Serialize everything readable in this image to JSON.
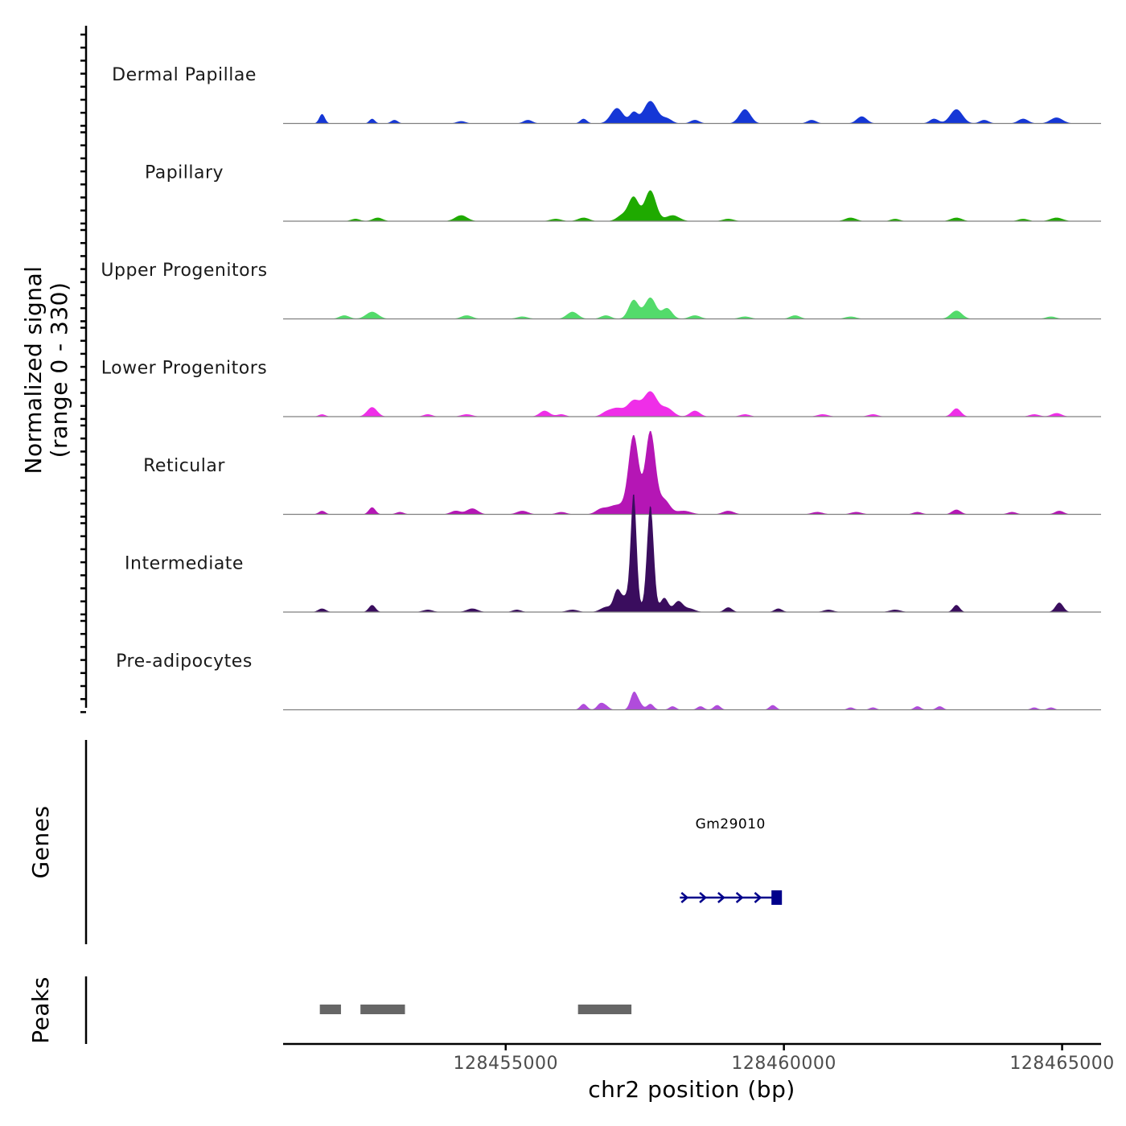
{
  "chart_data": {
    "type": "area",
    "chromosome": "chr2",
    "xlabel": "chr2 position (bp)",
    "ylabel_line1": "Normalized signal",
    "ylabel_line2": "(range 0 - 330)",
    "signal_range": [
      0,
      330
    ],
    "xlim": [
      128451000,
      128465700
    ],
    "x_ticks": [
      128455000,
      128460000,
      128465000
    ],
    "x_tick_labels": [
      "128455000",
      "128460000",
      "128465000"
    ],
    "tracks": [
      {
        "name": "Dermal Papillae",
        "color": "#1537d6",
        "peaks": [
          [
            128451700,
            8,
            50
          ],
          [
            128452600,
            4,
            50
          ],
          [
            128453000,
            3,
            60
          ],
          [
            128454200,
            2,
            80
          ],
          [
            128455400,
            3,
            80
          ],
          [
            128456400,
            4,
            60
          ],
          [
            128457000,
            13,
            110
          ],
          [
            128457300,
            9,
            70
          ],
          [
            128457600,
            19,
            120
          ],
          [
            128457900,
            4,
            90
          ],
          [
            128458400,
            3,
            80
          ],
          [
            128459300,
            12,
            100
          ],
          [
            128460500,
            3,
            80
          ],
          [
            128461400,
            6,
            90
          ],
          [
            128462700,
            4,
            80
          ],
          [
            128463100,
            12,
            110
          ],
          [
            128463600,
            3,
            80
          ],
          [
            128464300,
            4,
            90
          ],
          [
            128464900,
            5,
            110
          ]
        ]
      },
      {
        "name": "Papillary",
        "color": "#1faa00",
        "peaks": [
          [
            128452300,
            2,
            80
          ],
          [
            128452700,
            3,
            90
          ],
          [
            128454200,
            5,
            110
          ],
          [
            128455900,
            2,
            100
          ],
          [
            128456400,
            3,
            100
          ],
          [
            128457100,
            5,
            100
          ],
          [
            128457300,
            20,
            90
          ],
          [
            128457600,
            26,
            100
          ],
          [
            128458000,
            5,
            120
          ],
          [
            128459000,
            2,
            100
          ],
          [
            128461200,
            3,
            100
          ],
          [
            128462000,
            2,
            80
          ],
          [
            128463100,
            3,
            100
          ],
          [
            128464300,
            2,
            90
          ],
          [
            128464900,
            3,
            110
          ]
        ]
      },
      {
        "name": "Upper Progenitors",
        "color": "#53db6b",
        "peaks": [
          [
            128452100,
            3,
            90
          ],
          [
            128452600,
            6,
            110
          ],
          [
            128454300,
            3,
            100
          ],
          [
            128455300,
            2,
            100
          ],
          [
            128456200,
            6,
            100
          ],
          [
            128456800,
            3,
            90
          ],
          [
            128457300,
            16,
            90
          ],
          [
            128457600,
            18,
            100
          ],
          [
            128457900,
            9,
            90
          ],
          [
            128458400,
            3,
            100
          ],
          [
            128459300,
            2,
            100
          ],
          [
            128460200,
            3,
            90
          ],
          [
            128461200,
            2,
            100
          ],
          [
            128463100,
            7,
            100
          ],
          [
            128464800,
            2,
            90
          ]
        ]
      },
      {
        "name": "Lower Progenitors",
        "color": "#ef2ee8",
        "peaks": [
          [
            128451700,
            2,
            60
          ],
          [
            128452600,
            8,
            90
          ],
          [
            128453600,
            2,
            80
          ],
          [
            128454300,
            2,
            100
          ],
          [
            128455700,
            5,
            90
          ],
          [
            128456000,
            2,
            80
          ],
          [
            128456800,
            3,
            90
          ],
          [
            128457000,
            7,
            120
          ],
          [
            128457300,
            13,
            110
          ],
          [
            128457600,
            21,
            120
          ],
          [
            128457900,
            7,
            110
          ],
          [
            128458400,
            5,
            90
          ],
          [
            128459300,
            2,
            90
          ],
          [
            128460700,
            2,
            100
          ],
          [
            128461600,
            2,
            90
          ],
          [
            128463100,
            7,
            80
          ],
          [
            128464500,
            2,
            90
          ],
          [
            128464900,
            3,
            90
          ]
        ]
      },
      {
        "name": "Reticular",
        "color": "#b516b5",
        "peaks": [
          [
            128451700,
            3,
            60
          ],
          [
            128452600,
            6,
            60
          ],
          [
            128453100,
            2,
            70
          ],
          [
            128454100,
            3,
            90
          ],
          [
            128454400,
            5,
            100
          ],
          [
            128455300,
            3,
            100
          ],
          [
            128456000,
            2,
            90
          ],
          [
            128456700,
            3,
            90
          ],
          [
            128457000,
            8,
            180
          ],
          [
            128457300,
            65,
            90
          ],
          [
            128457600,
            70,
            90
          ],
          [
            128457850,
            12,
            100
          ],
          [
            128458200,
            3,
            130
          ],
          [
            128459000,
            3,
            100
          ],
          [
            128460600,
            2,
            100
          ],
          [
            128461300,
            2,
            100
          ],
          [
            128462400,
            2,
            80
          ],
          [
            128463100,
            4,
            80
          ],
          [
            128464100,
            2,
            80
          ],
          [
            128464950,
            3,
            80
          ]
        ]
      },
      {
        "name": "Intermediate",
        "color": "#3a0d5e",
        "peaks": [
          [
            128451700,
            3,
            70
          ],
          [
            128452600,
            6,
            60
          ],
          [
            128453600,
            2,
            90
          ],
          [
            128454400,
            3,
            100
          ],
          [
            128455200,
            2,
            80
          ],
          [
            128456200,
            2,
            100
          ],
          [
            128456800,
            4,
            100
          ],
          [
            128457000,
            13,
            60
          ],
          [
            128457200,
            14,
            150
          ],
          [
            128457300,
            90,
            50
          ],
          [
            128457600,
            90,
            60
          ],
          [
            128457850,
            12,
            70
          ],
          [
            128458100,
            9,
            80
          ],
          [
            128458300,
            3,
            100
          ],
          [
            128459000,
            4,
            70
          ],
          [
            128459900,
            3,
            70
          ],
          [
            128460800,
            2,
            90
          ],
          [
            128462000,
            2,
            100
          ],
          [
            128463100,
            6,
            60
          ],
          [
            128464950,
            8,
            70
          ]
        ]
      },
      {
        "name": "Pre-adipocytes",
        "color": "#b04cdb",
        "peaks": [
          [
            128456400,
            5,
            60
          ],
          [
            128456700,
            5,
            60
          ],
          [
            128456800,
            3,
            60
          ],
          [
            128457300,
            14,
            60
          ],
          [
            128457400,
            5,
            60
          ],
          [
            128457600,
            5,
            60
          ],
          [
            128458000,
            3,
            60
          ],
          [
            128458500,
            3,
            60
          ],
          [
            128458800,
            4,
            60
          ],
          [
            128459800,
            4,
            60
          ],
          [
            128461200,
            2,
            60
          ],
          [
            128461600,
            2,
            60
          ],
          [
            128462400,
            3,
            60
          ],
          [
            128462800,
            3,
            60
          ],
          [
            128464500,
            2,
            60
          ],
          [
            128464800,
            2,
            60
          ]
        ]
      }
    ],
    "genes": [
      {
        "name": "Gm29010",
        "start": 128458130,
        "end": 128459950,
        "strand": "+",
        "color": "#00008b"
      }
    ],
    "peaks_track": [
      {
        "start": 128451660,
        "end": 128452040
      },
      {
        "start": 128452390,
        "end": 128453190
      },
      {
        "start": 128456300,
        "end": 128457260
      }
    ],
    "panel_titles": {
      "genes": "Genes",
      "peaks": "Peaks"
    }
  }
}
